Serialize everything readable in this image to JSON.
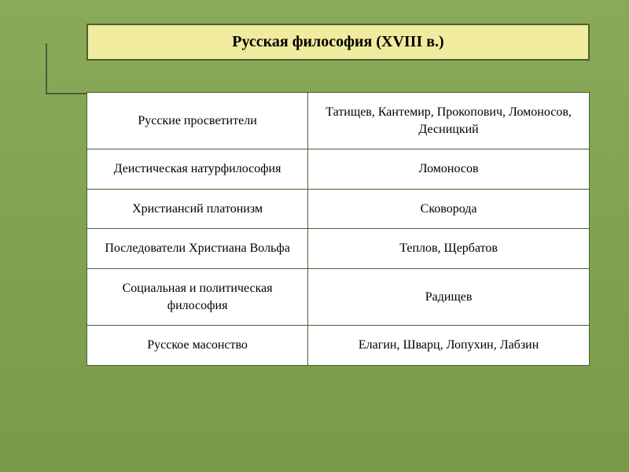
{
  "title": "Русская философия (XVIII в.)",
  "rows": [
    {
      "direction": "Русские просветители",
      "names": "Татищев, Кантемир, Прокопович, Ломоносов, Десницкий"
    },
    {
      "direction": "Деистическая натурфилософия",
      "names": "Ломоносов"
    },
    {
      "direction": "Христиансий платонизм",
      "names": "Сковорода"
    },
    {
      "direction": "Последователи Христиана Вольфа",
      "names": "Теплов, Щербатов"
    },
    {
      "direction": "Социальная и политическая философия",
      "names": "Радищев"
    },
    {
      "direction": "Русское масонство",
      "names": "Елагин, Шварц, Лопухин, Лабзин"
    }
  ],
  "colors": {
    "background_top": "#8aaa5a",
    "background_bottom": "#7a9a4a",
    "title_fill": "#f0eb9e",
    "border": "#4a6030",
    "cell_fill": "#ffffff",
    "text": "#000000"
  },
  "typography": {
    "title_fontsize": 20,
    "title_weight": "bold",
    "cell_fontsize": 16,
    "font_family": "Times New Roman"
  },
  "layout": {
    "title_align": "center",
    "cell_align": "center",
    "left_col_width_pct": 44,
    "right_col_width_pct": 56
  }
}
